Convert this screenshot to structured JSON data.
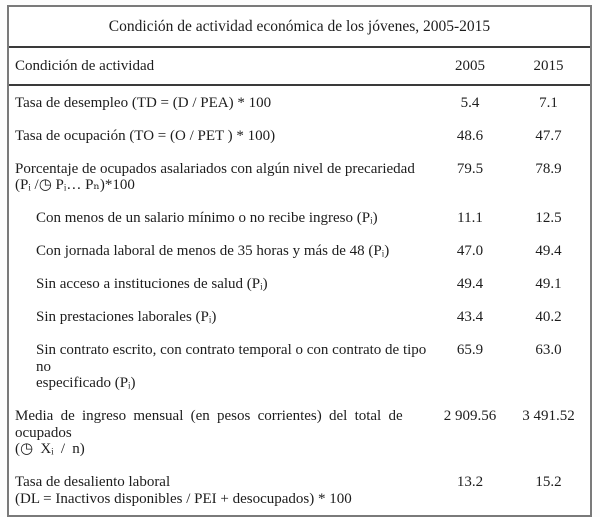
{
  "page": {
    "background": "#ffffff",
    "outer_border_color": "#7a7a7a",
    "rule_color": "#3a3a3a",
    "text_color": "#1d1d1d"
  },
  "title": "Condición de actividad económica de los jóvenes, 2005-2015",
  "table": {
    "columns": [
      {
        "label": "Condición de actividad"
      },
      {
        "label": "2005"
      },
      {
        "label": "2015"
      }
    ],
    "rows": [
      {
        "label": "Tasa de desempleo (TD = (D / PEA) * 100",
        "v2005": "5.4",
        "v2015": "7.1"
      },
      {
        "label": "Tasa de ocupación (TO = (O / PET ) * 100)",
        "v2005": "48.6",
        "v2015": "47.7"
      },
      {
        "label": "Porcentaje de ocupados asalariados con algún nivel de precariedad\n(Pᵢ /◷ Pᵢ… Pₙ)*100",
        "v2005": "79.5",
        "v2015": "78.9"
      },
      {
        "label": "Con menos de un salario mínimo o no recibe ingreso (Pᵢ)",
        "v2005": "11.1",
        "v2015": "12.5"
      },
      {
        "label": "Con jornada laboral de menos de 35 horas y más de 48 (Pᵢ)",
        "v2005": "47.0",
        "v2015": "49.4"
      },
      {
        "label": "Sin acceso a instituciones de salud (Pᵢ)",
        "v2005": "49.4",
        "v2015": "49.1"
      },
      {
        "label": "Sin prestaciones laborales (Pᵢ)",
        "v2005": "43.4",
        "v2015": "40.2"
      },
      {
        "label": "Sin contrato escrito, con contrato temporal o con contrato de tipo no\nespecificado (Pᵢ)",
        "v2005": "65.9",
        "v2015": "63.0"
      },
      {
        "label": "Media de ingreso mensual (en pesos corrientes) del total de ocupados\n(◷ Xᵢ / n)",
        "v2005": "2 909.56",
        "v2015": "3 491.52"
      },
      {
        "label": "Tasa de desaliento laboral\n(DL = Inactivos disponibles / PEI + desocupados) * 100",
        "v2005": "13.2",
        "v2015": "15.2"
      }
    ]
  }
}
